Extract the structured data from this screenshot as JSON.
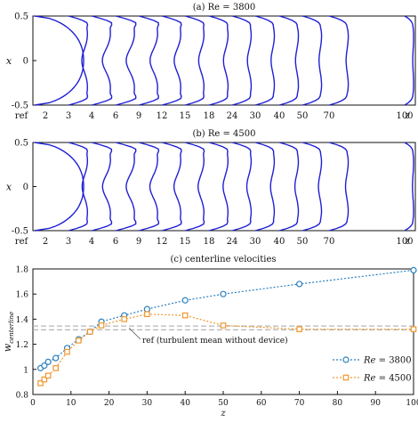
{
  "chart_data": [
    {
      "type": "line",
      "title": "(a) Re = 3800",
      "ylabel": "x",
      "ylim": [
        -0.5,
        0.5
      ],
      "yticks": [
        "0.5",
        "0",
        "-0.5"
      ],
      "x_axis_symbol": "z",
      "stations": [
        "ref",
        "2",
        "3",
        "4",
        "6",
        "9",
        "12",
        "15",
        "18",
        "24",
        "30",
        "40",
        "50",
        "70",
        "100"
      ],
      "line_color": "#1f1fd6",
      "profile_shape": [
        0.05,
        0.32,
        0.45,
        0.46,
        0.42,
        0.37,
        0.3,
        0.26,
        0.22,
        0.19,
        0.17,
        0.15,
        0.13,
        0.11,
        0.09
      ]
    },
    {
      "type": "line",
      "title": "(b) Re = 4500",
      "ylabel": "x",
      "ylim": [
        -0.5,
        0.5
      ],
      "yticks": [
        "0.5",
        "0",
        "-0.5"
      ],
      "x_axis_symbol": "z",
      "stations": [
        "ref",
        "2",
        "3",
        "4",
        "6",
        "9",
        "12",
        "15",
        "18",
        "24",
        "30",
        "40",
        "50",
        "70",
        "100"
      ],
      "line_color": "#1f1fd6",
      "profile_shape": [
        0.05,
        0.3,
        0.44,
        0.46,
        0.43,
        0.38,
        0.33,
        0.28,
        0.25,
        0.22,
        0.2,
        0.18,
        0.16,
        0.14,
        0.12
      ]
    },
    {
      "type": "line",
      "title": "(c) centerline velocities",
      "xlabel": "z",
      "ylabel": "w_centerline",
      "ylabel_main": "w",
      "ylabel_sub": "centerline",
      "xlim": [
        0,
        100
      ],
      "ylim": [
        0.8,
        1.8
      ],
      "xticks": [
        0,
        10,
        20,
        30,
        40,
        50,
        60,
        70,
        80,
        90,
        100
      ],
      "yticks": [
        0.8,
        1.0,
        1.2,
        1.4,
        1.6,
        1.8
      ],
      "ytick_labels": [
        "0.8",
        "1",
        "1.2",
        "1.4",
        "1.6",
        "1.8"
      ],
      "reference_lines": [
        1.315,
        1.345
      ],
      "annotation": "ref (turbulent mean without device)",
      "legend_position": "bottom-right",
      "series": [
        {
          "name": "Re = 3800",
          "legend_italic": "Re",
          "legend_rest": " = 3800",
          "color": "#2a7fbf",
          "marker": "circle",
          "x": [
            2,
            3,
            4,
            6,
            9,
            12,
            15,
            18,
            24,
            30,
            40,
            50,
            70,
            100
          ],
          "y": [
            1.01,
            1.03,
            1.06,
            1.09,
            1.17,
            1.24,
            1.3,
            1.38,
            1.43,
            1.48,
            1.55,
            1.6,
            1.68,
            1.79
          ]
        },
        {
          "name": "Re = 4500",
          "legend_italic": "Re",
          "legend_rest": " = 4500",
          "color": "#f0962c",
          "marker": "square",
          "x": [
            2,
            3,
            4,
            6,
            9,
            12,
            15,
            18,
            24,
            30,
            40,
            50,
            70,
            100
          ],
          "y": [
            0.89,
            0.92,
            0.95,
            1.01,
            1.14,
            1.23,
            1.3,
            1.35,
            1.4,
            1.44,
            1.43,
            1.35,
            1.32,
            1.32
          ]
        }
      ]
    }
  ]
}
